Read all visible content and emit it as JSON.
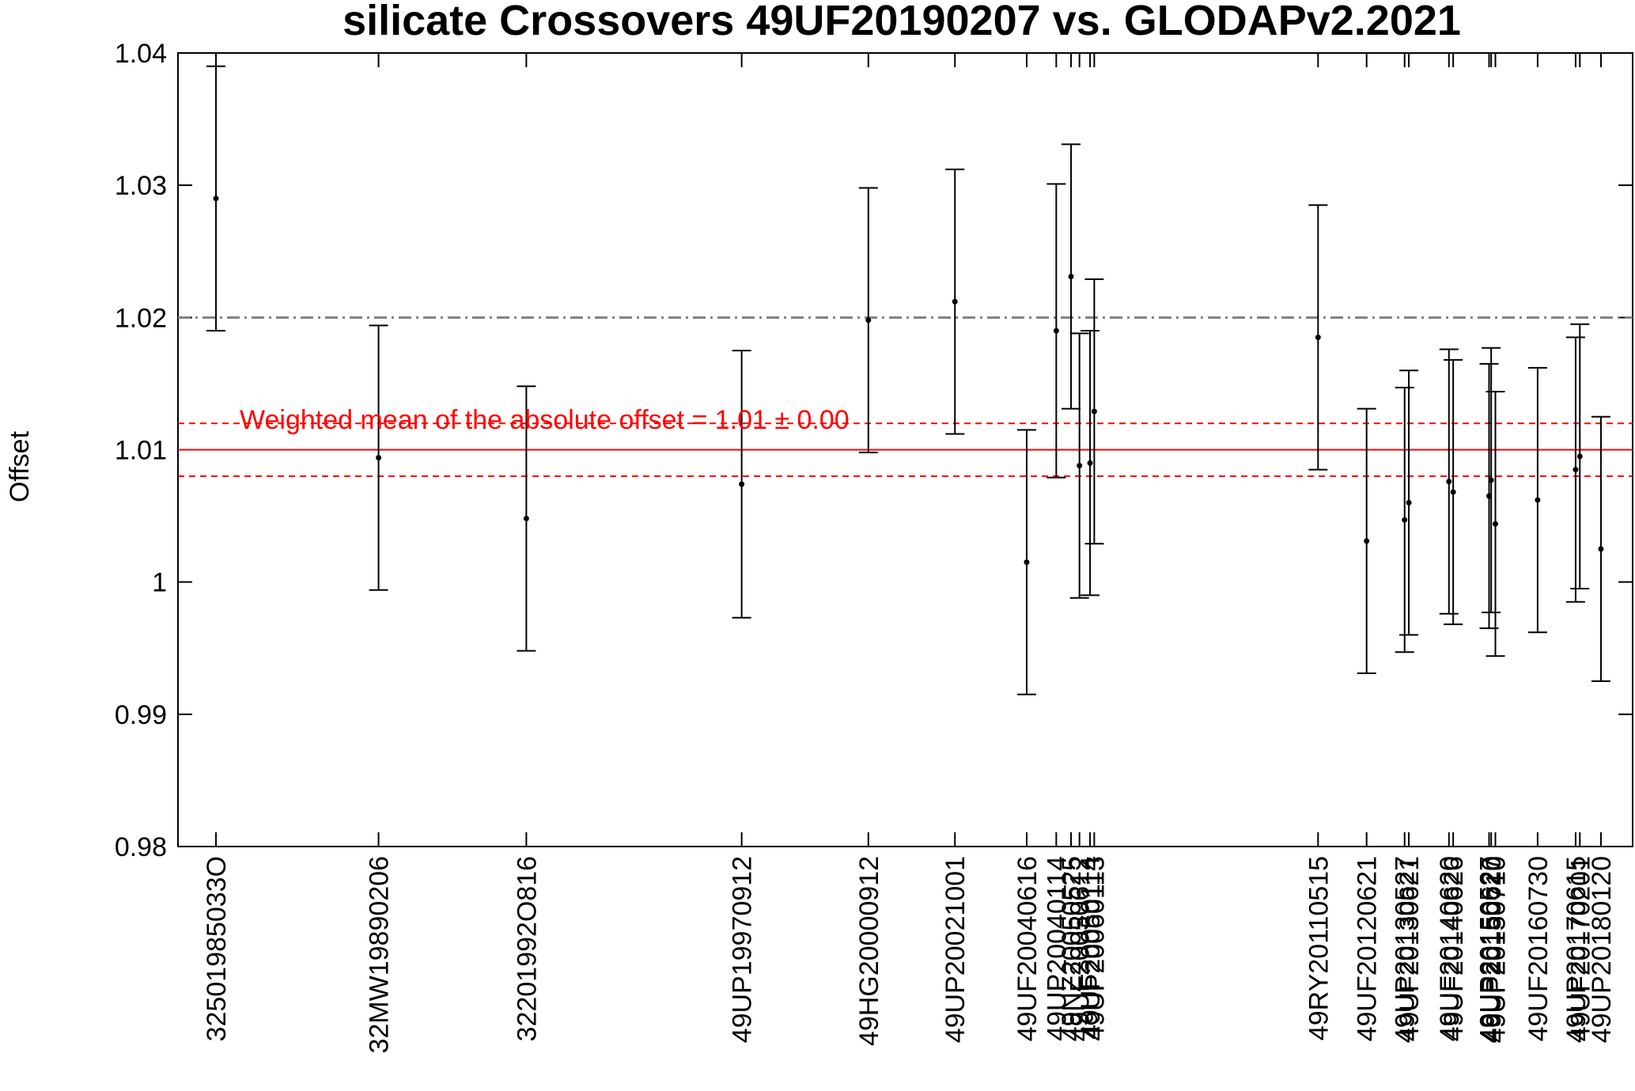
{
  "chart_data": {
    "type": "scatter",
    "title": "silicate Crossovers 49UF20190207 vs. GLODAPv2.2021",
    "xlabel": "",
    "ylabel": "Offset",
    "ylim": [
      0.98,
      1.04
    ],
    "yticks": [
      "0.98",
      "0.99",
      "1",
      "1.01",
      "1.02",
      "1.03",
      "1.04"
    ],
    "grid": false,
    "categories": [
      "32501985033O",
      "32MW19890206",
      "32201992O816",
      "49UP19970912",
      "49HG20000912",
      "49UP20021001",
      "49UF20040616",
      "49UP20040114",
      "49NZ20050525",
      "49UF20050612",
      "49UF20050114",
      "49UP20060113",
      "49RY20110515",
      "49UF20120621",
      "49UP20130527",
      "49UF20130621",
      "49UF20140620",
      "49UF20140626",
      "49UP20150527",
      "49UP20150620",
      "49UP20150710",
      "49UF20160730",
      "49UP20170615",
      "49UF20170201",
      "49UP20180120"
    ],
    "series": [
      {
        "x_positions": [
          1985.25,
          1989.1,
          1992.6,
          1997.7,
          2000.7,
          2002.75,
          2004.45,
          2005.15,
          2005.5,
          2005.7,
          2005.95,
          2006.05,
          2011.35,
          2012.5,
          2013.4,
          2013.5,
          2014.45,
          2014.55,
          2015.4,
          2015.45,
          2015.55,
          2016.55,
          2017.45,
          2017.55,
          2018.05
        ],
        "values": [
          1.029,
          1.0094,
          1.0048,
          1.0074,
          1.0198,
          1.0212,
          1.0015,
          1.019,
          1.0231,
          1.0088,
          1.009,
          1.0129,
          1.0185,
          1.0031,
          1.0047,
          1.006,
          1.0076,
          1.0068,
          1.0065,
          1.0077,
          1.0044,
          1.0062,
          1.0085,
          1.0095,
          1.0025
        ],
        "errors": [
          0.01,
          0.01,
          0.01,
          0.0101,
          0.01,
          0.01,
          0.01,
          0.0111,
          0.01,
          0.01,
          0.01,
          0.01,
          0.01,
          0.01,
          0.01,
          0.01,
          0.01,
          0.01,
          0.01,
          0.01,
          0.01,
          0.01,
          0.01,
          0.01,
          0.01
        ]
      }
    ],
    "reference_lines": [
      {
        "value": 1.02,
        "style": "dash-dot",
        "color": "#808080"
      },
      {
        "value": 1.01,
        "style": "solid",
        "color": "#ff0000"
      },
      {
        "value": 1.012,
        "style": "dashed",
        "color": "#ff0000"
      },
      {
        "value": 1.008,
        "style": "dashed",
        "color": "#ff0000"
      }
    ],
    "annotation": "Weighted mean of the absolute offset = 1.01 ± 0.00"
  }
}
